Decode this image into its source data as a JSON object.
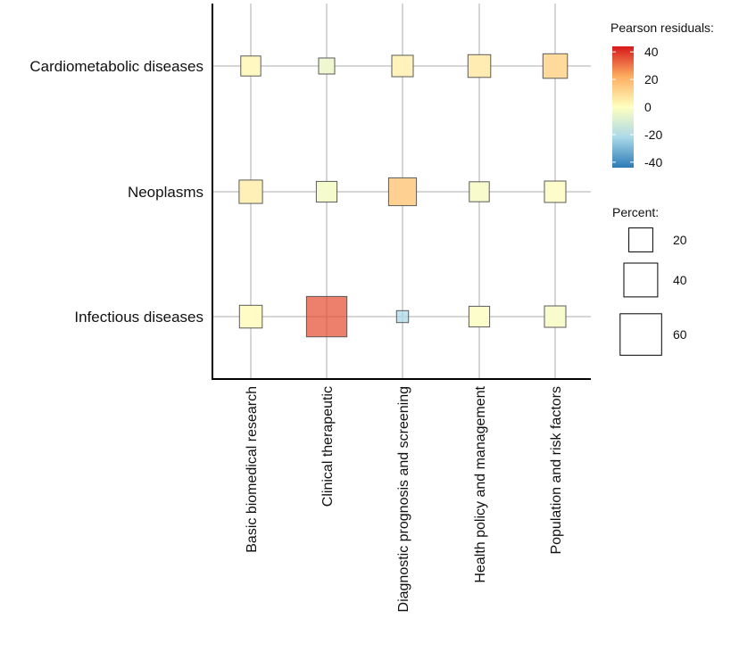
{
  "chart_data": {
    "type": "balloon",
    "rows": [
      "Cardiometabolic diseases",
      "Neoplasms",
      "Infectious diseases"
    ],
    "columns": [
      "Basic biomedical research",
      "Clinical therapeutic",
      "Diagnostic prognosis and screening",
      "Health policy and management",
      "Population and risk factors"
    ],
    "cells": [
      {
        "row": "Cardiometabolic diseases",
        "column": "Basic biomedical research",
        "percent": 14,
        "residual": 2
      },
      {
        "row": "Cardiometabolic diseases",
        "column": "Clinical therapeutic",
        "percent": 9,
        "residual": -5
      },
      {
        "row": "Cardiometabolic diseases",
        "column": "Diagnostic prognosis and screening",
        "percent": 16,
        "residual": 4
      },
      {
        "row": "Cardiometabolic diseases",
        "column": "Health policy and management",
        "percent": 18,
        "residual": 6
      },
      {
        "row": "Cardiometabolic diseases",
        "column": "Population and risk factors",
        "percent": 21,
        "residual": 12
      },
      {
        "row": "Neoplasms",
        "column": "Basic biomedical research",
        "percent": 19,
        "residual": 5
      },
      {
        "row": "Neoplasms",
        "column": "Clinical therapeutic",
        "percent": 15,
        "residual": -3
      },
      {
        "row": "Neoplasms",
        "column": "Diagnostic prognosis and screening",
        "percent": 27,
        "residual": 15
      },
      {
        "row": "Neoplasms",
        "column": "Health policy and management",
        "percent": 14,
        "residual": -2
      },
      {
        "row": "Neoplasms",
        "column": "Population and risk factors",
        "percent": 16,
        "residual": -1
      },
      {
        "row": "Infectious diseases",
        "column": "Basic biomedical research",
        "percent": 18,
        "residual": 1
      },
      {
        "row": "Infectious diseases",
        "column": "Clinical therapeutic",
        "percent": 57,
        "residual": 36
      },
      {
        "row": "Infectious diseases",
        "column": "Diagnostic prognosis and screening",
        "percent": 5,
        "residual": -22
      },
      {
        "row": "Infectious diseases",
        "column": "Health policy and management",
        "percent": 15,
        "residual": -1
      },
      {
        "row": "Infectious diseases",
        "column": "Population and risk factors",
        "percent": 16,
        "residual": -2
      }
    ],
    "legend_color": {
      "title": "Pearson residuals:",
      "ticks": [
        "40",
        "20",
        "0",
        "-20",
        "-40"
      ],
      "range": [
        -44,
        44
      ],
      "placement": "top-right"
    },
    "legend_size": {
      "title": "Percent:",
      "entries": [
        {
          "label": "20",
          "percent": 20
        },
        {
          "label": "40",
          "percent": 40
        },
        {
          "label": "60",
          "percent": 60
        }
      ],
      "placement": "right"
    },
    "colors": {
      "high": "#d7191c",
      "mid_high": "#fdae61",
      "neutral": "#ffffbf",
      "mid_low": "#abd9e9",
      "low": "#2c7bb6",
      "grid": "#c8c8c8",
      "axis": "#000000"
    }
  }
}
